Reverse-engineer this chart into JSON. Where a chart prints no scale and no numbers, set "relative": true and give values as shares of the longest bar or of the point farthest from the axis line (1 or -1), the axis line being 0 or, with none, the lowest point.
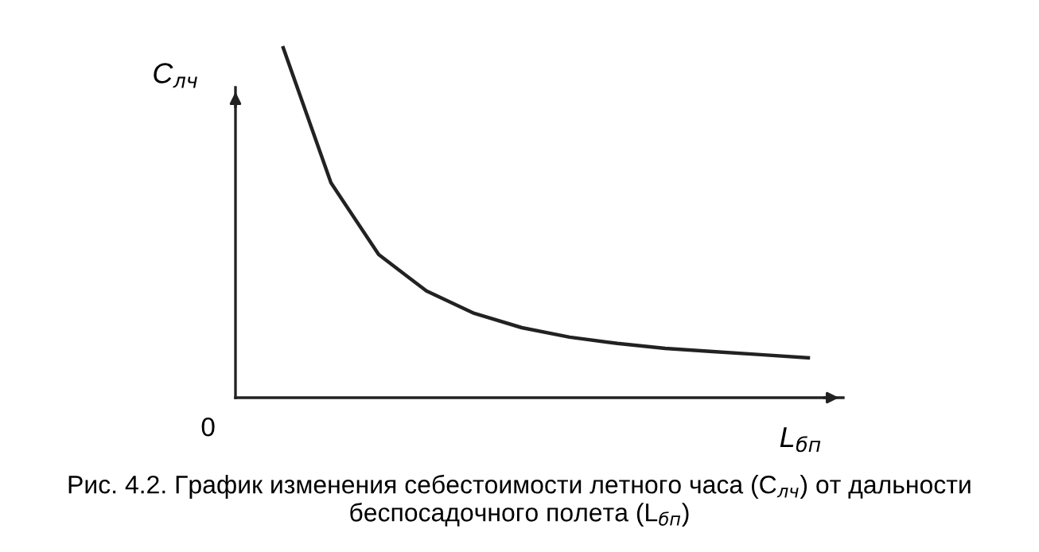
{
  "chart_data": {
    "type": "line",
    "relative": true,
    "xlabel": "L$_{бп}$",
    "ylabel": "C$_{лч}$",
    "categories": [
      null,
      null,
      null,
      null,
      null,
      null,
      null,
      null,
      null,
      null,
      null,
      null
    ],
    "values": [
      1.0,
      0.614,
      0.409,
      0.305,
      0.241,
      0.2,
      0.173,
      0.155,
      0.141,
      0.132,
      0.123,
      0.114
    ],
    "color": "#222222",
    "marker": "none",
    "line_style": "solid",
    "grid": false,
    "legend": false,
    "tick_labels": false,
    "annotations": [
      "0",
      "Рис. 4.2. График изменения себестоимости летного часа (C$_{лч}$) от дальности беспосадочного полета (L$_{бп}$)"
    ]
  }
}
